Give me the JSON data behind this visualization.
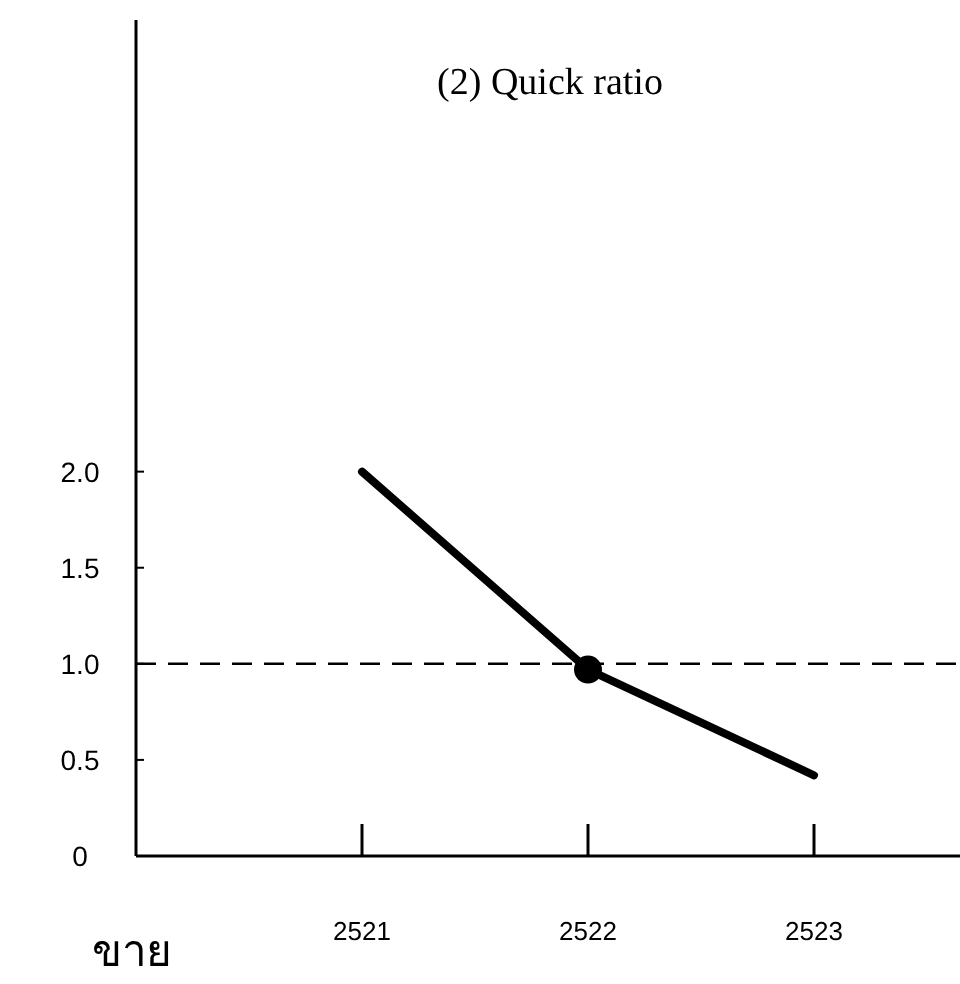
{
  "chart_data": {
    "type": "line",
    "title": "(2) Quick ratio",
    "xlabel": "ขาย",
    "categories": [
      "2521",
      "2522",
      "2523"
    ],
    "series": [
      {
        "color": "#000000",
        "values": [
          2.0,
          0.97,
          0.42
        ],
        "marker": "none"
      },
      {
        "type": "scatter",
        "color": "#000000",
        "values": [
          null,
          0.97,
          null
        ],
        "marker": "circle"
      }
    ],
    "ylim": [
      0,
      4.35
    ],
    "yticks": [
      0,
      0.5,
      {
        "value": 1,
        "label": "1.0"
      },
      1.5,
      {
        "value": 2,
        "label": "2.0"
      }
    ],
    "ref_lines": [
      {
        "axis": "y",
        "value": 1,
        "color": "#000000",
        "line_style": "dashed"
      }
    ],
    "grid": false
  }
}
